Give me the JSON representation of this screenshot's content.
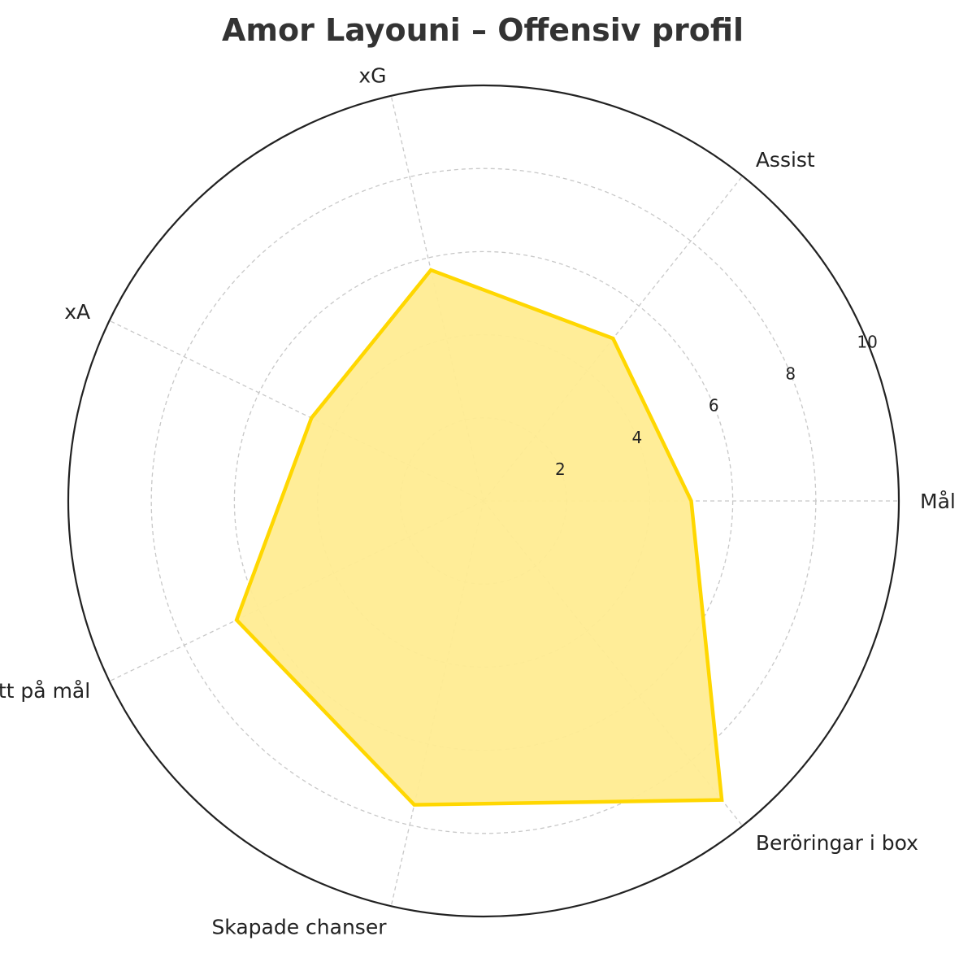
{
  "chart_data": {
    "type": "radar",
    "title": "Amor Layouni – Offensiv profil",
    "categories": [
      "Mål",
      "Assist",
      "xG",
      "xA",
      "Skott på mål",
      "Skapade chanser",
      "Beröringar i box"
    ],
    "series": [
      {
        "values": [
          5.0,
          5.0,
          5.7,
          4.6,
          6.6,
          7.5,
          9.2
        ]
      }
    ],
    "rlim": [
      0,
      10
    ],
    "r_ticks": [
      2,
      4,
      6,
      8,
      10
    ],
    "grid": true,
    "colors": {
      "line": "#FFD700",
      "fill": "#FFEC92",
      "title": "#333333"
    }
  }
}
